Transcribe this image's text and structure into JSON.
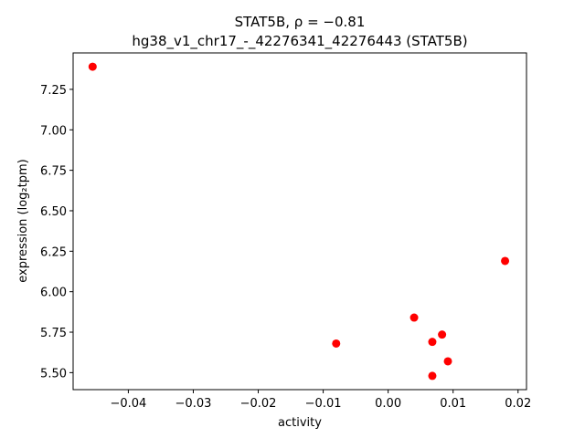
{
  "chart_data": {
    "type": "scatter",
    "title_line1": "STAT5B, ρ = −0.81",
    "title_line2": "hg38_v1_chr17_-_42276341_42276443 (STAT5B)",
    "xlabel": "activity",
    "ylabel": "expression (log₂tpm)",
    "xlim": [
      -0.0485,
      0.0213
    ],
    "ylim": [
      5.395,
      7.475
    ],
    "xticks": [
      -0.04,
      -0.03,
      -0.02,
      -0.01,
      0.0,
      0.01,
      0.02
    ],
    "xtick_labels": [
      "−0.04",
      "−0.03",
      "−0.02",
      "−0.01",
      "0.00",
      "0.01",
      "0.02"
    ],
    "yticks": [
      5.5,
      5.75,
      6.0,
      6.25,
      6.5,
      6.75,
      7.0,
      7.25
    ],
    "ytick_labels": [
      "5.50",
      "5.75",
      "6.00",
      "6.25",
      "6.50",
      "6.75",
      "7.00",
      "7.25"
    ],
    "marker_color": "#ff0000",
    "grid": false,
    "points": [
      {
        "x": -0.0455,
        "y": 7.39
      },
      {
        "x": 0.018,
        "y": 6.19
      },
      {
        "x": 0.004,
        "y": 5.84
      },
      {
        "x": 0.0083,
        "y": 5.735
      },
      {
        "x": -0.008,
        "y": 5.68
      },
      {
        "x": 0.0068,
        "y": 5.69
      },
      {
        "x": 0.0092,
        "y": 5.57
      },
      {
        "x": 0.0068,
        "y": 5.48
      }
    ]
  }
}
